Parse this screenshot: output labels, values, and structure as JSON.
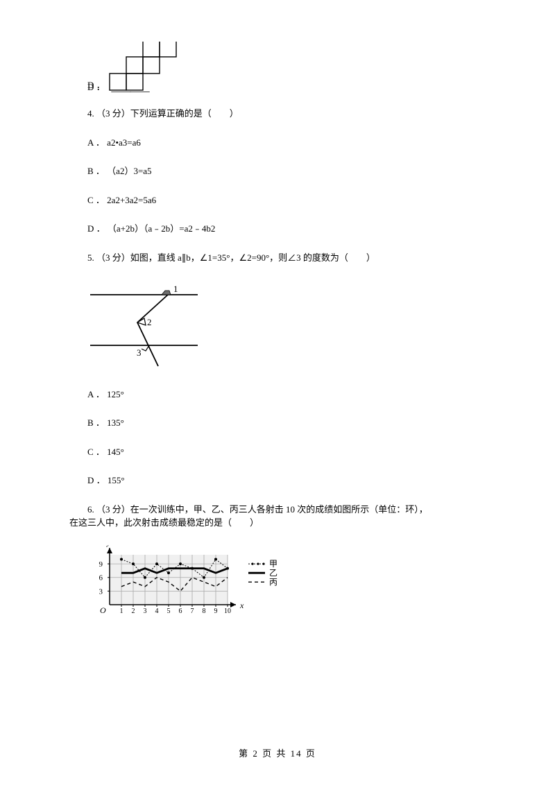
{
  "q3": {
    "option_d_label": "D ．"
  },
  "q4": {
    "stem": "4.  （3 分）下列运算正确的是（　　）",
    "options": {
      "a": "A ． a2•a3=a6",
      "b": "B ． （a2）3=a5",
      "c": "C ． 2a2+3a2=5a6",
      "d": "D ． （a+2b）（a﹣2b）=a2﹣4b2"
    }
  },
  "q5": {
    "stem": "5.  （3 分）如图，直线 a∥b，∠1=35°，∠2=90°，则∠3 的度数为（　　）",
    "options": {
      "a": "A ． 125°",
      "b": "B ． 135°",
      "c": "C ． 145°",
      "d": "D ． 155°"
    },
    "figure": {
      "labels": {
        "one": "1",
        "two": "2",
        "three": "3"
      }
    }
  },
  "q6": {
    "stem_line1": "6.  （3 分）在一次训练中，甲、乙、丙三人各射击 10 次的成绩如图所示（单位：环），",
    "stem_line2": "在这三人中，此次射击成绩最稳定的是（　　）",
    "chart": {
      "type": "line",
      "x_label": "x",
      "y_label": "y",
      "x_ticks": [
        1,
        2,
        3,
        4,
        5,
        6,
        7,
        8,
        9,
        10
      ],
      "y_ticks": [
        3,
        6,
        9
      ],
      "background_color": "#f0f0f0",
      "grid_color": "#a8a8a8",
      "series": [
        {
          "name": "甲",
          "legend_label": "甲",
          "style": "dotted-marker",
          "values": [
            10,
            9,
            6,
            9,
            7,
            9,
            8,
            6,
            10,
            8
          ],
          "color": "#000000"
        },
        {
          "name": "乙",
          "legend_label": "乙",
          "style": "solid-thick",
          "values": [
            7,
            7,
            8,
            7,
            8,
            8,
            8,
            8,
            7,
            8
          ],
          "color": "#000000"
        },
        {
          "name": "丙",
          "legend_label": "丙",
          "style": "dashed",
          "values": [
            4,
            5,
            4,
            6,
            5,
            3,
            6,
            5,
            4,
            6
          ],
          "color": "#000000"
        }
      ]
    }
  },
  "footer": "第 2 页 共 14 页"
}
